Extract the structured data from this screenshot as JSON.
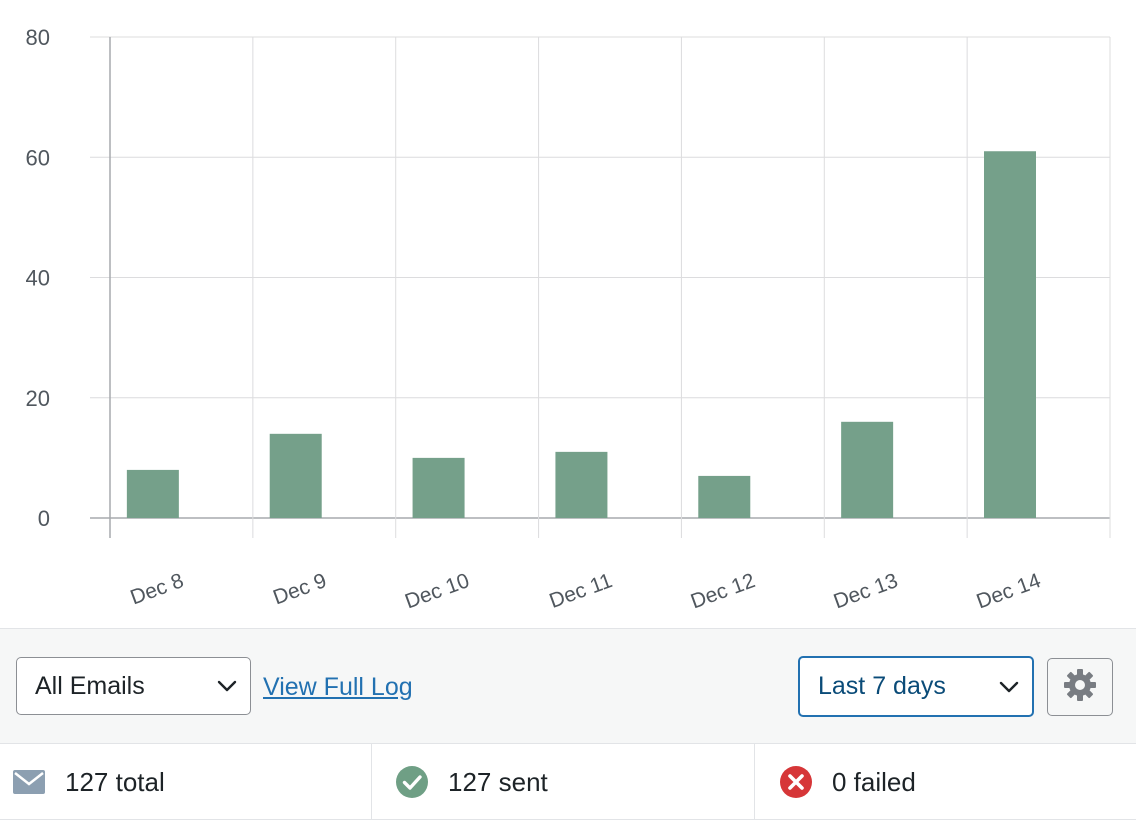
{
  "chart_data": {
    "type": "bar",
    "categories": [
      "Dec 8",
      "Dec 9",
      "Dec 10",
      "Dec 11",
      "Dec 12",
      "Dec 13",
      "Dec 14"
    ],
    "values": [
      8,
      14,
      10,
      11,
      7,
      16,
      61
    ],
    "yticks": [
      "0",
      "20",
      "40",
      "60",
      "80"
    ],
    "ylim": [
      0,
      80
    ],
    "grid": true,
    "bar_color": "#75a08a"
  },
  "toolbar": {
    "email_filter": "All Emails",
    "view_log": "View Full Log",
    "period": "Last 7 days"
  },
  "stats": {
    "total": "127 total",
    "sent": "127 sent",
    "failed": "0 failed"
  },
  "icons": {
    "email_filter_chevron": "chevron-down-icon",
    "period_chevron": "chevron-down-icon",
    "settings": "gear-icon",
    "total": "envelope-icon",
    "sent": "check-circle-icon",
    "failed": "x-circle-icon"
  },
  "colors": {
    "accent": "#2271b1",
    "success": "#6f9f85",
    "error": "#d63638",
    "envelope": "#8c9fb1"
  }
}
